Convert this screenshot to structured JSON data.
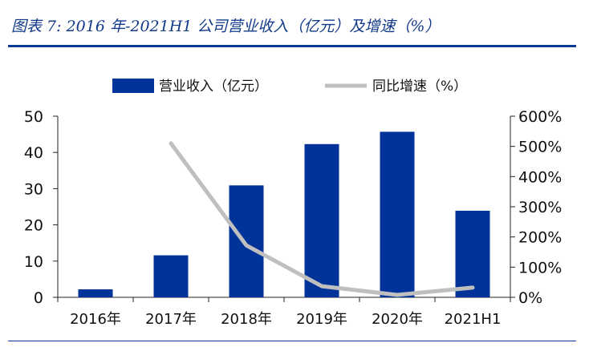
{
  "figure": {
    "title": "图表 7: 2016 年-2021H1 公司营业收入（亿元）及增速（%）"
  },
  "colors": {
    "bar": "#003399",
    "line": "#bfbfbf",
    "title": "#123a8a",
    "rule": "#0a3c96"
  },
  "chart_data": {
    "type": "bar",
    "categories": [
      "2016年",
      "2017年",
      "2018年",
      "2019年",
      "2020年",
      "2021H1"
    ],
    "series": [
      {
        "name": "营业收入（亿元）",
        "type": "bar",
        "axis": "left",
        "values": [
          2.2,
          11.6,
          30.9,
          42.3,
          45.7,
          23.9
        ]
      },
      {
        "name": "同比增速（%）",
        "type": "line",
        "axis": "right",
        "values": [
          null,
          510,
          172,
          37,
          8,
          32
        ]
      }
    ],
    "left_axis": {
      "min": 0,
      "max": 50,
      "ticks": [
        0,
        10,
        20,
        30,
        40,
        50
      ],
      "tick_labels": [
        "0",
        "10",
        "20",
        "30",
        "40",
        "50"
      ]
    },
    "right_axis": {
      "min": 0,
      "max": 600,
      "ticks": [
        0,
        100,
        200,
        300,
        400,
        500,
        600
      ],
      "tick_labels": [
        "0%",
        "100%",
        "200%",
        "300%",
        "400%",
        "500%",
        "600%"
      ]
    },
    "legend_position": "top-center",
    "grid": false
  }
}
